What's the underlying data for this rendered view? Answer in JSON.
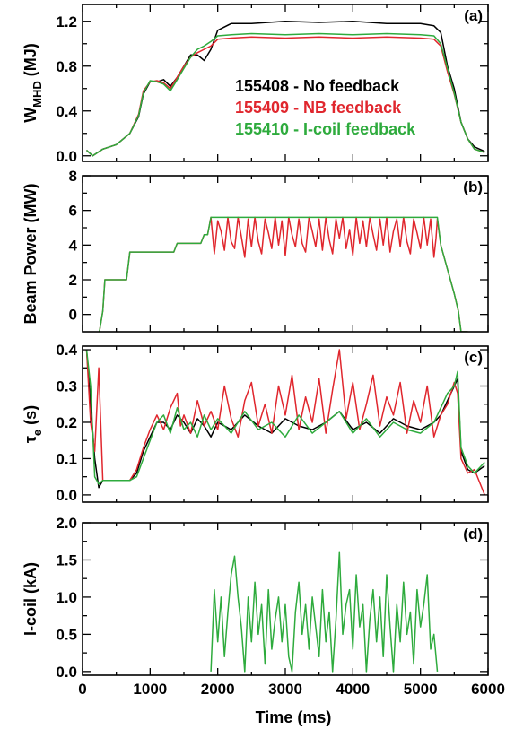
{
  "colors": {
    "black": "#000000",
    "red": "#e0262d",
    "green": "#2eab3d"
  },
  "chart_data": [
    {
      "type": "line",
      "panel_label": "(a)",
      "ylabel_main": "W",
      "ylabel_sub": "MHD",
      "ylabel_unit": " (MJ)",
      "xlim": [
        0,
        6000
      ],
      "ylim": [
        -0.05,
        1.35
      ],
      "yticks": [
        0.0,
        0.4,
        0.8,
        1.2
      ],
      "ytick_labels": [
        "0.0",
        "0.4",
        "0.8",
        "1.2"
      ],
      "legend_position": "center",
      "series": [
        {
          "name": "155408 - No feedback",
          "color": "#000000",
          "x": [
            60,
            150,
            300,
            500,
            700,
            830,
            900,
            1000,
            1100,
            1200,
            1300,
            1400,
            1500,
            1600,
            1700,
            1800,
            1900,
            2000,
            2200,
            2500,
            3000,
            3500,
            4000,
            4500,
            5000,
            5200,
            5300,
            5400,
            5500,
            5600,
            5700,
            5800,
            5950
          ],
          "y": [
            0.05,
            0.0,
            0.06,
            0.1,
            0.2,
            0.35,
            0.55,
            0.66,
            0.66,
            0.68,
            0.62,
            0.7,
            0.8,
            0.9,
            0.9,
            0.85,
            0.95,
            1.12,
            1.18,
            1.18,
            1.2,
            1.19,
            1.2,
            1.18,
            1.18,
            1.16,
            1.1,
            0.8,
            0.6,
            0.3,
            0.15,
            0.08,
            0.04
          ]
        },
        {
          "name": "155409 - NB feedback",
          "color": "#e0262d",
          "x": [
            60,
            150,
            300,
            500,
            700,
            830,
            900,
            1000,
            1100,
            1200,
            1300,
            1400,
            1500,
            1600,
            1700,
            1800,
            1900,
            2000,
            2200,
            2500,
            3000,
            3500,
            4000,
            4500,
            5000,
            5200,
            5300,
            5400,
            5500,
            5600,
            5700,
            5800,
            5950
          ],
          "y": [
            0.05,
            0.0,
            0.06,
            0.1,
            0.2,
            0.37,
            0.58,
            0.66,
            0.67,
            0.65,
            0.6,
            0.7,
            0.8,
            0.88,
            0.92,
            0.95,
            0.98,
            1.04,
            1.05,
            1.06,
            1.05,
            1.06,
            1.05,
            1.06,
            1.05,
            1.04,
            0.98,
            0.75,
            0.55,
            0.3,
            0.15,
            0.06,
            0.03
          ]
        },
        {
          "name": "155410 - I-coil feedback",
          "color": "#2eab3d",
          "x": [
            60,
            150,
            300,
            500,
            700,
            830,
            900,
            1000,
            1100,
            1200,
            1300,
            1400,
            1500,
            1600,
            1700,
            1800,
            1900,
            2000,
            2200,
            2500,
            3000,
            3500,
            4000,
            4500,
            5000,
            5200,
            5300,
            5400,
            5500,
            5600,
            5700,
            5800,
            5950
          ],
          "y": [
            0.05,
            0.0,
            0.06,
            0.1,
            0.2,
            0.36,
            0.56,
            0.67,
            0.66,
            0.64,
            0.58,
            0.68,
            0.78,
            0.88,
            0.95,
            0.98,
            1.02,
            1.07,
            1.08,
            1.09,
            1.08,
            1.09,
            1.08,
            1.09,
            1.08,
            1.07,
            1.0,
            0.78,
            0.56,
            0.3,
            0.15,
            0.06,
            0.03
          ]
        }
      ]
    },
    {
      "type": "line",
      "panel_label": "(b)",
      "ylabel": "Beam Power (MW)",
      "xlim": [
        0,
        6000
      ],
      "ylim": [
        -1,
        8
      ],
      "yticks": [
        0,
        2,
        4,
        6,
        8
      ],
      "ytick_labels": [
        "0",
        "2",
        "4",
        "6",
        "8"
      ],
      "series": [
        {
          "name": "155409",
          "color": "#e0262d",
          "x": [
            250,
            300,
            330,
            650,
            700,
            1350,
            1400,
            1750,
            1800,
            1850,
            1900,
            1950,
            2000,
            2050,
            2100,
            2150,
            2200,
            2250,
            2300,
            2350,
            2400,
            2450,
            2500,
            2550,
            2600,
            2650,
            2700,
            2750,
            2800,
            2850,
            2900,
            2950,
            3000,
            3050,
            3100,
            3150,
            3200,
            3250,
            3300,
            3350,
            3400,
            3450,
            3500,
            3550,
            3600,
            3650,
            3700,
            3750,
            3800,
            3850,
            3900,
            3950,
            4000,
            4050,
            4100,
            4150,
            4200,
            4250,
            4300,
            4350,
            4400,
            4450,
            4500,
            4550,
            4600,
            4650,
            4700,
            4750,
            4800,
            4850,
            4900,
            4950,
            5000,
            5050,
            5100,
            5150,
            5200,
            5230,
            5250,
            5300,
            5400,
            5500,
            5560,
            5600,
            5650,
            5700
          ],
          "y": [
            -1,
            0.2,
            2,
            2,
            3.6,
            3.6,
            4.1,
            4.1,
            4.6,
            4.6,
            5.6,
            3.5,
            5.4,
            4.8,
            3.7,
            5.6,
            4.2,
            3.8,
            5.6,
            4.5,
            3.3,
            5.5,
            3.9,
            5.6,
            4.2,
            3.5,
            5.5,
            4.7,
            3.8,
            5.6,
            4.0,
            5.4,
            3.4,
            5.6,
            4.6,
            3.9,
            5.5,
            4.1,
            3.6,
            5.6,
            4.8,
            3.9,
            5.5,
            3.7,
            5.6,
            4.3,
            3.5,
            5.5,
            4.4,
            5.6,
            3.8,
            4.9,
            3.4,
            5.6,
            4.1,
            5.4,
            3.9,
            5.6,
            4.6,
            3.7,
            5.5,
            4.0,
            5.6,
            3.6,
            4.8,
            5.5,
            3.9,
            5.6,
            4.2,
            3.5,
            5.5,
            4.7,
            3.8,
            5.6,
            4.0,
            5.5,
            3.3,
            4.4,
            5.5,
            4.0,
            2.6,
            1.2,
            0.2,
            -1,
            -1,
            -1
          ],
          "note": "red"
        },
        {
          "name": "155410",
          "color": "#2eab3d",
          "x": [
            250,
            300,
            330,
            650,
            700,
            1350,
            1400,
            1750,
            1800,
            1850,
            1900,
            5200,
            5230,
            5250,
            5300,
            5400,
            5500,
            5560,
            5600,
            5650,
            5700
          ],
          "y": [
            -1,
            0.2,
            2,
            2,
            3.6,
            3.6,
            4.1,
            4.1,
            4.6,
            4.6,
            5.6,
            5.6,
            5.6,
            5.6,
            4.0,
            2.6,
            1.2,
            0.2,
            -1,
            -1,
            -1
          ]
        }
      ]
    },
    {
      "type": "line",
      "panel_label": "(c)",
      "ylabel_main": "τ",
      "ylabel_sub": "e",
      "ylabel_unit": " (s)",
      "xlim": [
        0,
        6000
      ],
      "ylim": [
        -0.02,
        0.41
      ],
      "yticks": [
        0.0,
        0.1,
        0.2,
        0.3,
        0.4
      ],
      "ytick_labels": [
        "0.0",
        "0.1",
        "0.2",
        "0.3",
        "0.4"
      ],
      "series": [
        {
          "name": "155408",
          "color": "#000000",
          "x": [
            60,
            120,
            180,
            240,
            300,
            400,
            600,
            700,
            800,
            900,
            1000,
            1100,
            1200,
            1300,
            1400,
            1500,
            1600,
            1700,
            1800,
            1900,
            2000,
            2200,
            2400,
            2600,
            2800,
            3000,
            3200,
            3400,
            3600,
            3800,
            4000,
            4200,
            4400,
            4600,
            4800,
            5000,
            5200,
            5300,
            5400,
            5500,
            5550,
            5600,
            5700,
            5800,
            5950
          ],
          "y": [
            0.4,
            0.25,
            0.1,
            0.02,
            0.04,
            0.04,
            0.04,
            0.04,
            0.06,
            0.12,
            0.16,
            0.2,
            0.2,
            0.18,
            0.22,
            0.2,
            0.17,
            0.21,
            0.19,
            0.16,
            0.2,
            0.18,
            0.22,
            0.19,
            0.17,
            0.21,
            0.19,
            0.18,
            0.2,
            0.23,
            0.18,
            0.2,
            0.17,
            0.21,
            0.19,
            0.18,
            0.2,
            0.22,
            0.26,
            0.3,
            0.32,
            0.12,
            0.07,
            0.06,
            0.08
          ]
        },
        {
          "name": "155409",
          "color": "#e0262d",
          "x": [
            60,
            120,
            180,
            240,
            300,
            350,
            400,
            600,
            700,
            800,
            900,
            1000,
            1100,
            1200,
            1300,
            1400,
            1450,
            1500,
            1600,
            1700,
            1800,
            1900,
            2000,
            2100,
            2200,
            2300,
            2400,
            2500,
            2600,
            2700,
            2800,
            2900,
            3000,
            3100,
            3200,
            3300,
            3400,
            3500,
            3600,
            3700,
            3800,
            3900,
            4000,
            4100,
            4200,
            4300,
            4400,
            4500,
            4600,
            4700,
            4800,
            4900,
            5000,
            5100,
            5200,
            5300,
            5400,
            5500,
            5550,
            5600,
            5700,
            5800,
            5950
          ],
          "y": [
            0.4,
            0.2,
            0.12,
            0.35,
            0.04,
            0.04,
            0.04,
            0.04,
            0.04,
            0.07,
            0.13,
            0.18,
            0.22,
            0.18,
            0.24,
            0.28,
            0.19,
            0.22,
            0.17,
            0.26,
            0.19,
            0.23,
            0.18,
            0.3,
            0.21,
            0.16,
            0.26,
            0.31,
            0.19,
            0.25,
            0.17,
            0.3,
            0.22,
            0.33,
            0.18,
            0.27,
            0.2,
            0.32,
            0.17,
            0.29,
            0.4,
            0.21,
            0.31,
            0.18,
            0.25,
            0.33,
            0.19,
            0.27,
            0.22,
            0.31,
            0.17,
            0.26,
            0.2,
            0.3,
            0.16,
            0.22,
            0.25,
            0.31,
            0.28,
            0.1,
            0.06,
            0.07,
            0.0
          ]
        },
        {
          "name": "155410",
          "color": "#2eab3d",
          "x": [
            60,
            120,
            180,
            240,
            300,
            400,
            600,
            700,
            800,
            900,
            1000,
            1100,
            1200,
            1300,
            1400,
            1500,
            1600,
            1700,
            1800,
            1900,
            2000,
            2200,
            2400,
            2600,
            2800,
            3000,
            3200,
            3400,
            3600,
            3800,
            4000,
            4200,
            4400,
            4600,
            4800,
            5000,
            5200,
            5300,
            5400,
            5500,
            5550,
            5600,
            5700,
            5800,
            5950
          ],
          "y": [
            0.4,
            0.3,
            0.05,
            0.03,
            0.04,
            0.04,
            0.04,
            0.04,
            0.05,
            0.1,
            0.15,
            0.2,
            0.22,
            0.17,
            0.24,
            0.18,
            0.2,
            0.16,
            0.22,
            0.18,
            0.21,
            0.17,
            0.23,
            0.18,
            0.2,
            0.16,
            0.22,
            0.17,
            0.2,
            0.23,
            0.17,
            0.21,
            0.16,
            0.2,
            0.18,
            0.17,
            0.2,
            0.24,
            0.28,
            0.3,
            0.34,
            0.13,
            0.08,
            0.06,
            0.09
          ]
        }
      ]
    },
    {
      "type": "line",
      "panel_label": "(d)",
      "ylabel": "I-coil (kA)",
      "xlabel": "Time (ms)",
      "xlim": [
        0,
        6000
      ],
      "ylim": [
        -0.05,
        2.0
      ],
      "yticks": [
        0.0,
        0.5,
        1.0,
        1.5,
        2.0
      ],
      "ytick_labels": [
        "0.0",
        "0.5",
        "1.0",
        "1.5",
        "2.0"
      ],
      "xticks": [
        0,
        1000,
        2000,
        3000,
        4000,
        5000,
        6000
      ],
      "xtick_labels": [
        "0",
        "1000",
        "2000",
        "3000",
        "4000",
        "5000",
        "6000"
      ],
      "series": [
        {
          "name": "155410",
          "color": "#2eab3d",
          "x": [
            1900,
            1950,
            2000,
            2050,
            2100,
            2150,
            2200,
            2250,
            2300,
            2350,
            2400,
            2450,
            2500,
            2550,
            2600,
            2650,
            2700,
            2750,
            2800,
            2850,
            2900,
            2950,
            3000,
            3050,
            3100,
            3150,
            3200,
            3250,
            3300,
            3350,
            3400,
            3450,
            3500,
            3550,
            3600,
            3650,
            3700,
            3750,
            3800,
            3850,
            3900,
            3950,
            4000,
            4050,
            4100,
            4150,
            4200,
            4250,
            4300,
            4350,
            4400,
            4450,
            4500,
            4550,
            4600,
            4650,
            4700,
            4750,
            4800,
            4850,
            4900,
            4950,
            5000,
            5050,
            5100,
            5150,
            5200,
            5250
          ],
          "y": [
            0.0,
            1.1,
            0.4,
            1.0,
            0.2,
            0.8,
            1.3,
            1.55,
            1.0,
            0.6,
            0.0,
            1.0,
            0.4,
            1.2,
            0.5,
            0.9,
            0.1,
            1.1,
            0.3,
            0.7,
            1.0,
            0.4,
            0.9,
            0.2,
            0.0,
            0.8,
            1.2,
            0.5,
            0.9,
            0.3,
            1.0,
            0.6,
            0.2,
            1.1,
            0.4,
            0.8,
            0.0,
            0.7,
            1.6,
            0.5,
            0.9,
            1.1,
            0.3,
            1.3,
            0.6,
            0.9,
            0.0,
            0.7,
            1.1,
            0.4,
            1.0,
            0.2,
            1.3,
            0.6,
            0.0,
            0.9,
            0.4,
            1.2,
            0.5,
            0.8,
            0.1,
            1.1,
            0.6,
            0.9,
            1.3,
            0.3,
            0.5,
            0.0
          ]
        }
      ]
    }
  ]
}
